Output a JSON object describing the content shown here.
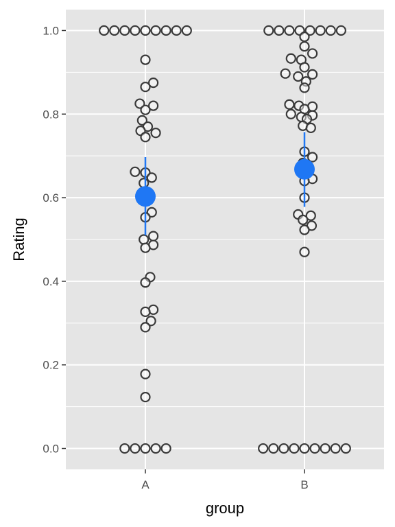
{
  "chart_data": {
    "type": "scatter",
    "xlabel": "group",
    "ylabel": "Rating",
    "categories": [
      "A",
      "B"
    ],
    "ylim": [
      -0.05,
      1.05
    ],
    "y_ticks": [
      0.0,
      0.2,
      0.4,
      0.6,
      0.8,
      1.0
    ],
    "y_tick_labels": [
      "0.0",
      "0.2",
      "0.4",
      "0.6",
      "0.8",
      "1.0"
    ],
    "grid": true,
    "colors": {
      "panel": "#e5e5e5",
      "grid": "#ffffff",
      "point_stroke": "#3a3a3a",
      "point_fill": "#ffffff",
      "summary": "#1f77f4"
    },
    "series": [
      {
        "category": "A",
        "points": [
          {
            "dx": -0.52,
            "y": 1.0
          },
          {
            "dx": -0.39,
            "y": 1.0
          },
          {
            "dx": -0.26,
            "y": 1.0
          },
          {
            "dx": -0.13,
            "y": 1.0
          },
          {
            "dx": 0.0,
            "y": 1.0
          },
          {
            "dx": 0.13,
            "y": 1.0
          },
          {
            "dx": 0.26,
            "y": 1.0
          },
          {
            "dx": 0.39,
            "y": 1.0
          },
          {
            "dx": 0.52,
            "y": 1.0
          },
          {
            "dx": 0.0,
            "y": 0.93
          },
          {
            "dx": 0.1,
            "y": 0.875
          },
          {
            "dx": 0.0,
            "y": 0.865
          },
          {
            "dx": -0.07,
            "y": 0.825
          },
          {
            "dx": 0.1,
            "y": 0.82
          },
          {
            "dx": 0.0,
            "y": 0.81
          },
          {
            "dx": -0.04,
            "y": 0.785
          },
          {
            "dx": 0.03,
            "y": 0.77
          },
          {
            "dx": -0.06,
            "y": 0.76
          },
          {
            "dx": 0.13,
            "y": 0.755
          },
          {
            "dx": 0.0,
            "y": 0.745
          },
          {
            "dx": -0.13,
            "y": 0.662
          },
          {
            "dx": 0.0,
            "y": 0.66
          },
          {
            "dx": 0.08,
            "y": 0.648
          },
          {
            "dx": -0.02,
            "y": 0.635
          },
          {
            "dx": 0.08,
            "y": 0.565
          },
          {
            "dx": 0.0,
            "y": 0.553
          },
          {
            "dx": 0.1,
            "y": 0.508
          },
          {
            "dx": -0.02,
            "y": 0.5
          },
          {
            "dx": 0.1,
            "y": 0.487
          },
          {
            "dx": 0.0,
            "y": 0.48
          },
          {
            "dx": 0.06,
            "y": 0.41
          },
          {
            "dx": 0.0,
            "y": 0.397
          },
          {
            "dx": 0.1,
            "y": 0.332
          },
          {
            "dx": 0.0,
            "y": 0.327
          },
          {
            "dx": 0.07,
            "y": 0.305
          },
          {
            "dx": 0.0,
            "y": 0.29
          },
          {
            "dx": 0.0,
            "y": 0.178
          },
          {
            "dx": 0.0,
            "y": 0.123
          },
          {
            "dx": -0.26,
            "y": 0.0
          },
          {
            "dx": -0.13,
            "y": 0.0
          },
          {
            "dx": 0.0,
            "y": 0.0
          },
          {
            "dx": 0.13,
            "y": 0.0
          },
          {
            "dx": 0.26,
            "y": 0.0
          }
        ],
        "mean": 0.603,
        "lower": 0.51,
        "upper": 0.697
      },
      {
        "category": "B",
        "points": [
          {
            "dx": -0.45,
            "y": 1.0
          },
          {
            "dx": -0.32,
            "y": 1.0
          },
          {
            "dx": -0.19,
            "y": 1.0
          },
          {
            "dx": -0.06,
            "y": 1.0
          },
          {
            "dx": 0.07,
            "y": 1.0
          },
          {
            "dx": 0.2,
            "y": 1.0
          },
          {
            "dx": 0.33,
            "y": 1.0
          },
          {
            "dx": 0.46,
            "y": 1.0
          },
          {
            "dx": 0.0,
            "y": 0.985
          },
          {
            "dx": 0.0,
            "y": 0.962
          },
          {
            "dx": 0.1,
            "y": 0.945
          },
          {
            "dx": -0.17,
            "y": 0.933
          },
          {
            "dx": -0.04,
            "y": 0.93
          },
          {
            "dx": 0.0,
            "y": 0.912
          },
          {
            "dx": -0.24,
            "y": 0.897
          },
          {
            "dx": 0.1,
            "y": 0.895
          },
          {
            "dx": -0.08,
            "y": 0.89
          },
          {
            "dx": 0.02,
            "y": 0.878
          },
          {
            "dx": 0.0,
            "y": 0.863
          },
          {
            "dx": -0.19,
            "y": 0.823
          },
          {
            "dx": -0.07,
            "y": 0.82
          },
          {
            "dx": 0.1,
            "y": 0.818
          },
          {
            "dx": 0.0,
            "y": 0.812
          },
          {
            "dx": -0.17,
            "y": 0.8
          },
          {
            "dx": 0.1,
            "y": 0.797
          },
          {
            "dx": -0.04,
            "y": 0.793
          },
          {
            "dx": 0.03,
            "y": 0.788
          },
          {
            "dx": -0.02,
            "y": 0.772
          },
          {
            "dx": 0.08,
            "y": 0.767
          },
          {
            "dx": 0.0,
            "y": 0.71
          },
          {
            "dx": 0.1,
            "y": 0.697
          },
          {
            "dx": -0.02,
            "y": 0.683
          },
          {
            "dx": 0.1,
            "y": 0.645
          },
          {
            "dx": 0.0,
            "y": 0.64
          },
          {
            "dx": 0.0,
            "y": 0.6
          },
          {
            "dx": -0.08,
            "y": 0.56
          },
          {
            "dx": 0.08,
            "y": 0.557
          },
          {
            "dx": -0.02,
            "y": 0.547
          },
          {
            "dx": 0.09,
            "y": 0.533
          },
          {
            "dx": 0.0,
            "y": 0.523
          },
          {
            "dx": 0.0,
            "y": 0.47
          },
          {
            "dx": -0.52,
            "y": 0.0
          },
          {
            "dx": -0.39,
            "y": 0.0
          },
          {
            "dx": -0.26,
            "y": 0.0
          },
          {
            "dx": -0.13,
            "y": 0.0
          },
          {
            "dx": 0.0,
            "y": 0.0
          },
          {
            "dx": 0.13,
            "y": 0.0
          },
          {
            "dx": 0.26,
            "y": 0.0
          },
          {
            "dx": 0.39,
            "y": 0.0
          },
          {
            "dx": 0.52,
            "y": 0.0
          }
        ],
        "mean": 0.668,
        "lower": 0.578,
        "upper": 0.757
      }
    ]
  }
}
